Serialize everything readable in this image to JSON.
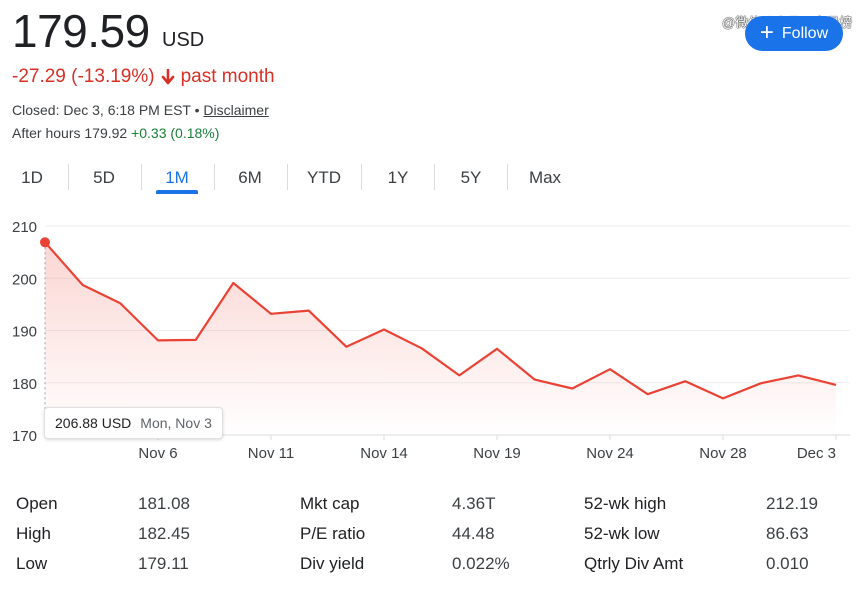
{
  "quote": {
    "price": "179.59",
    "currency": "USD",
    "change_text": "-27.29 (-13.19%)",
    "period_text": "past month",
    "closed_text": "Closed: Dec 3, 6:18 PM EST",
    "disclaimer": "Disclaimer",
    "after_hours_label": "After hours 179.92",
    "after_hours_change": "+0.33 (0.18%)"
  },
  "watermark": "@微信公众号：字母榜",
  "follow": {
    "label": "Follow"
  },
  "tabs": [
    {
      "label": "1D"
    },
    {
      "label": "5D"
    },
    {
      "label": "1M",
      "active": true
    },
    {
      "label": "6M"
    },
    {
      "label": "YTD"
    },
    {
      "label": "1Y"
    },
    {
      "label": "5Y"
    },
    {
      "label": "Max"
    }
  ],
  "colors": {
    "line": "#ea4335",
    "negative": "#d93025",
    "positive": "#188038",
    "accent": "#1a73e8"
  },
  "chart_data": {
    "type": "area",
    "title": "",
    "ylim": [
      170,
      210
    ],
    "yticks": [
      170,
      180,
      190,
      200,
      210
    ],
    "x_tick_labels": [
      "Nov 6",
      "Nov 11",
      "Nov 14",
      "Nov 19",
      "Nov 24",
      "Nov 28",
      "Dec 3"
    ],
    "x": [
      "Nov 3",
      "Nov 4",
      "Nov 5",
      "Nov 6",
      "Nov 7",
      "Nov 10",
      "Nov 11",
      "Nov 12",
      "Nov 13",
      "Nov 14",
      "Nov 17",
      "Nov 18",
      "Nov 19",
      "Nov 20",
      "Nov 21",
      "Nov 24",
      "Nov 25",
      "Nov 26",
      "Nov 28",
      "Dec 1",
      "Dec 2",
      "Dec 3"
    ],
    "values": [
      206.88,
      198.7,
      195.2,
      188.1,
      188.2,
      199.1,
      193.2,
      193.8,
      186.9,
      190.2,
      186.6,
      181.4,
      186.5,
      180.6,
      178.9,
      182.6,
      177.8,
      180.3,
      177.0,
      179.9,
      181.4,
      179.59
    ],
    "tooltip": {
      "value": "206.88 USD",
      "date": "Mon, Nov 3"
    }
  },
  "stats": [
    {
      "label": "Open",
      "value": "181.08"
    },
    {
      "label": "High",
      "value": "182.45"
    },
    {
      "label": "Low",
      "value": "179.11"
    },
    {
      "label": "Mkt cap",
      "value": "4.36T"
    },
    {
      "label": "P/E ratio",
      "value": "44.48"
    },
    {
      "label": "Div yield",
      "value": "0.022%"
    },
    {
      "label": "52-wk high",
      "value": "212.19"
    },
    {
      "label": "52-wk low",
      "value": "86.63"
    },
    {
      "label": "Qtrly Div Amt",
      "value": "0.010"
    }
  ]
}
